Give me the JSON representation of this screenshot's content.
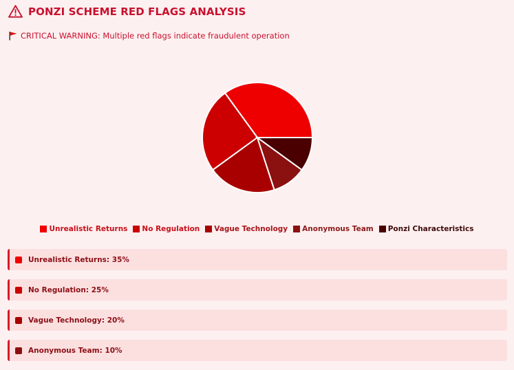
{
  "header": {
    "title": "PONZI SCHEME RED FLAGS ANALYSIS"
  },
  "warning": {
    "text": "CRITICAL WARNING: Multiple red flags indicate fraudulent operation"
  },
  "chart_data": {
    "type": "pie",
    "categories": [
      "Unrealistic Returns",
      "No Regulation",
      "Vague Technology",
      "Anonymous Team",
      "Ponzi Characteristics"
    ],
    "values": [
      35,
      25,
      20,
      10,
      10
    ],
    "colors": [
      "#ee0000",
      "#cc0000",
      "#a80000",
      "#8b1010",
      "#4a0000"
    ],
    "legend_colors": [
      "#c8101a",
      "#c8101a",
      "#a8141a",
      "#8b1a1a",
      "#3d0a0a"
    ],
    "legend_position": "bottom"
  },
  "cards": [
    {
      "label": "Unrealistic Returns: 35%",
      "color": "#ee0000"
    },
    {
      "label": "No Regulation: 25%",
      "color": "#cc0000"
    },
    {
      "label": "Vague Technology: 20%",
      "color": "#a80000"
    },
    {
      "label": "Anonymous Team: 10%",
      "color": "#8b1010"
    }
  ]
}
